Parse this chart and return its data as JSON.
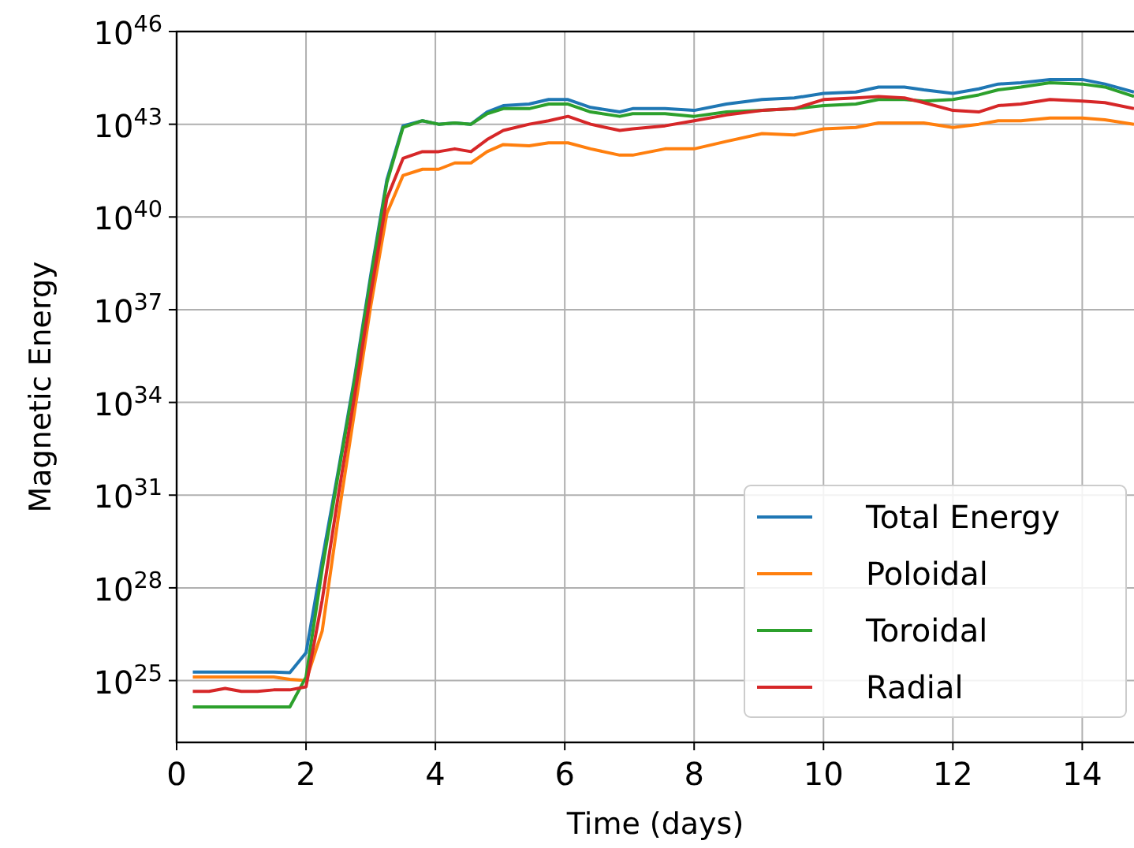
{
  "chart_data": {
    "type": "line",
    "xlabel": "Time (days)",
    "ylabel": "Magnetic Energy",
    "log": "y",
    "grid": true,
    "legend": "bottom right",
    "xlim": [
      0,
      14.8
    ],
    "ylim": [
      1e+23,
      1e+46
    ],
    "xticks": [
      0,
      2,
      4,
      6,
      8,
      10,
      12,
      14
    ],
    "yticks": [
      {
        "value": 1e+25,
        "label": "10$^{25}$"
      },
      {
        "value": 1e+28,
        "label": "10$^{28}$"
      },
      {
        "value": 1e+31,
        "label": "10$^{31}$"
      },
      {
        "value": 1e+34,
        "label": "10$^{34}$"
      },
      {
        "value": 1e+37,
        "label": "10$^{37}$"
      },
      {
        "value": 1e+40,
        "label": "10$^{40}$"
      },
      {
        "value": 1e+43,
        "label": "10$^{43}$"
      },
      {
        "value": 1e+46,
        "label": "10$^{46}$"
      }
    ],
    "x": [
      0.25,
      0.5,
      0.75,
      1.0,
      1.25,
      1.5,
      1.75,
      2.0,
      2.25,
      2.5,
      2.75,
      3.0,
      3.25,
      3.5,
      3.8,
      4.05,
      4.3,
      4.55,
      4.8,
      5.05,
      5.45,
      5.75,
      6.05,
      6.4,
      6.85,
      7.05,
      7.55,
      8.0,
      8.5,
      9.05,
      9.55,
      10.0,
      10.5,
      10.85,
      11.25,
      11.55,
      12.0,
      12.4,
      12.7,
      13.05,
      13.5,
      14.0,
      14.35,
      14.8
    ],
    "series": [
      {
        "name": "Total Energy",
        "color": "#1f77b4",
        "values": [
          1.9e+25,
          1.9e+25,
          1.9e+25,
          1.9e+25,
          1.9e+25,
          1.9e+25,
          1.8e+25,
          7.9e+25,
          7.9e+28,
          6.3e+31,
          6.3e+34,
          1.3e+38,
          1.6e+41,
          8.9e+42,
          1.3e+43,
          1e+43,
          1.1e+43,
          1e+43,
          2.5e+43,
          4e+43,
          4.5e+43,
          6.3e+43,
          6.3e+43,
          3.5e+43,
          2.5e+43,
          3.2e+43,
          3.2e+43,
          2.8e+43,
          4.5e+43,
          6.3e+43,
          7.1e+43,
          1e+44,
          1.1e+44,
          1.6e+44,
          1.6e+44,
          1.3e+44,
          1e+44,
          1.4e+44,
          2e+44,
          2.2e+44,
          2.8e+44,
          2.8e+44,
          2e+44,
          1.1e+44
        ]
      },
      {
        "name": "Poloidal",
        "color": "#ff7f0e",
        "values": [
          1.3e+25,
          1.3e+25,
          1.3e+25,
          1.3e+25,
          1.3e+25,
          1.3e+25,
          1.1e+25,
          1e+25,
          4e+26,
          2e+30,
          5e+33,
          1.3e+37,
          1.3e+40,
          2.2e+41,
          3.5e+41,
          3.5e+41,
          5.6e+41,
          5.6e+41,
          1.3e+42,
          2.2e+42,
          2e+42,
          2.5e+42,
          2.5e+42,
          1.6e+42,
          1e+42,
          1e+42,
          1.6e+42,
          1.6e+42,
          2.8e+42,
          5e+42,
          4.5e+42,
          7.1e+42,
          7.9e+42,
          1.1e+43,
          1.1e+43,
          1.1e+43,
          7.9e+42,
          1e+43,
          1.3e+43,
          1.3e+43,
          1.6e+43,
          1.6e+43,
          1.4e+43,
          1e+43
        ]
      },
      {
        "name": "Toroidal",
        "color": "#2ca02c",
        "values": [
          1.4e+24,
          1.4e+24,
          1.4e+24,
          1.4e+24,
          1.4e+24,
          1.4e+24,
          1.4e+24,
          1.3e+25,
          4e+28,
          5e+31,
          5e+34,
          1e+38,
          1.3e+41,
          7.9e+42,
          1.3e+43,
          1e+43,
          1.1e+43,
          1e+43,
          2.2e+43,
          3.2e+43,
          3.2e+43,
          4.5e+43,
          4.5e+43,
          2.5e+43,
          1.8e+43,
          2.2e+43,
          2.2e+43,
          1.8e+43,
          2.5e+43,
          2.8e+43,
          3.2e+43,
          4e+43,
          4.5e+43,
          6.3e+43,
          6.3e+43,
          5.6e+43,
          6.3e+43,
          8.9e+43,
          1.3e+44,
          1.6e+44,
          2.2e+44,
          2e+44,
          1.6e+44,
          7.9e+43
        ]
      },
      {
        "name": "Radial",
        "color": "#d62728",
        "values": [
          4.5e+24,
          4.5e+24,
          5.6e+24,
          4.5e+24,
          4.5e+24,
          5e+24,
          5e+24,
          6.3e+24,
          4e+27,
          1e+31,
          1.6e+34,
          3.2e+37,
          4e+40,
          7.9e+41,
          1.3e+42,
          1.3e+42,
          1.6e+42,
          1.3e+42,
          3.2e+42,
          6.3e+42,
          1e+43,
          1.3e+43,
          1.8e+43,
          1e+43,
          6.3e+42,
          7.1e+42,
          8.9e+42,
          1.3e+43,
          2e+43,
          2.8e+43,
          3.2e+43,
          6.3e+43,
          7.1e+43,
          7.9e+43,
          7.1e+43,
          5e+43,
          2.8e+43,
          2.5e+43,
          4e+43,
          4.5e+43,
          6.3e+43,
          5.6e+43,
          5e+43,
          3.2e+43
        ]
      }
    ]
  }
}
